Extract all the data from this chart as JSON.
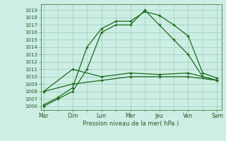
{
  "days": [
    "Mar",
    "Dim",
    "Lun",
    "Mer",
    "Jeu",
    "Ven",
    "Sam"
  ],
  "line1_x": [
    0,
    0.5,
    1,
    1.5,
    2,
    2.5,
    3,
    3.5,
    4,
    4.5,
    5,
    5.5,
    6
  ],
  "line1_y": [
    1006,
    1007,
    1008,
    1011,
    1016,
    1017,
    1017,
    1019,
    1017,
    1015,
    1013,
    1010,
    1009.5
  ],
  "line2_x": [
    0,
    0.5,
    1,
    1.5,
    2,
    2.5,
    3,
    3.5,
    4,
    4.5,
    5,
    5.5,
    6
  ],
  "line2_y": [
    1006.2,
    1007.2,
    1008.5,
    1014,
    1016.5,
    1017.5,
    1017.5,
    1018.8,
    1018.3,
    1017.0,
    1015.5,
    1010.5,
    1009.8
  ],
  "line3_x": [
    0,
    1,
    2,
    3,
    4,
    5,
    6
  ],
  "line3_y": [
    1008,
    1011,
    1010,
    1010.5,
    1010.3,
    1010.5,
    1009.5
  ],
  "line4_x": [
    0,
    1,
    2,
    3,
    4,
    5,
    6
  ],
  "line4_y": [
    1008,
    1009,
    1009.5,
    1010,
    1010.0,
    1010.0,
    1009.5
  ],
  "ylim": [
    1005.5,
    1019.8
  ],
  "yticks": [
    1006,
    1007,
    1008,
    1009,
    1010,
    1011,
    1012,
    1013,
    1014,
    1015,
    1016,
    1017,
    1018,
    1019
  ],
  "xlabel": "Pression niveau de la mer( hPa )",
  "line_color": "#1a6b1a",
  "bg_color": "#cceee4",
  "grid_color": "#9cc9bb",
  "tick_label_color": "#2a5a2a",
  "marker": "+",
  "linewidth": 0.9,
  "markersize": 3.5,
  "markeredgewidth": 0.9
}
